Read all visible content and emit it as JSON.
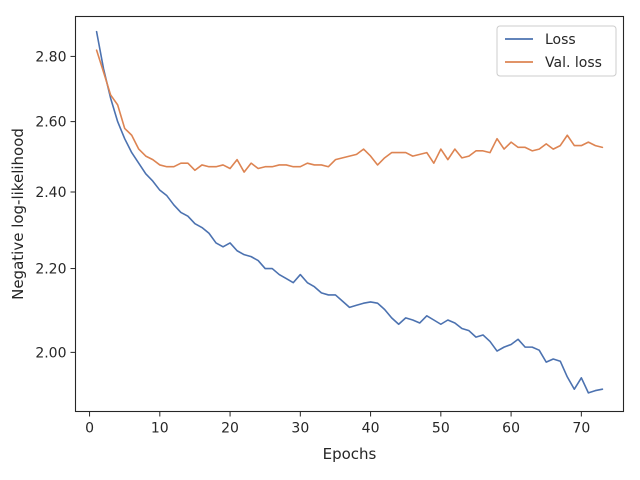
{
  "chart_data": {
    "type": "line",
    "title": "",
    "xlabel": "Epochs",
    "ylabel": "Negative log-likelihood",
    "y_scale": "log",
    "xlim": [
      -2,
      76
    ],
    "ylim": [
      1.87,
      2.93
    ],
    "x_ticks": [
      0,
      10,
      20,
      30,
      40,
      50,
      60,
      70
    ],
    "x_tick_labels": [
      "0",
      "10",
      "20",
      "30",
      "40",
      "50",
      "60",
      "70"
    ],
    "y_ticks": [
      2.0,
      2.2,
      2.4,
      2.6,
      2.8
    ],
    "y_tick_labels": [
      "2.00",
      "2.20",
      "2.40",
      "2.60",
      "2.80"
    ],
    "grid": false,
    "legend_position": "top-right",
    "x": [
      1,
      2,
      3,
      4,
      5,
      6,
      7,
      8,
      9,
      10,
      11,
      12,
      13,
      14,
      15,
      16,
      17,
      18,
      19,
      20,
      21,
      22,
      23,
      24,
      25,
      26,
      27,
      28,
      29,
      30,
      31,
      32,
      33,
      34,
      35,
      36,
      37,
      38,
      39,
      40,
      41,
      42,
      43,
      44,
      45,
      46,
      47,
      48,
      49,
      50,
      51,
      52,
      53,
      54,
      55,
      56,
      57,
      58,
      59,
      60,
      61,
      62,
      63,
      64,
      65,
      66,
      67,
      68,
      69,
      70,
      71,
      72,
      73
    ],
    "series": [
      {
        "name": "Loss",
        "color": "#4c72b0",
        "values": [
          2.88,
          2.76,
          2.67,
          2.6,
          2.55,
          2.51,
          2.48,
          2.45,
          2.43,
          2.405,
          2.39,
          2.365,
          2.345,
          2.335,
          2.315,
          2.305,
          2.29,
          2.265,
          2.255,
          2.265,
          2.245,
          2.235,
          2.23,
          2.22,
          2.2,
          2.2,
          2.185,
          2.175,
          2.165,
          2.185,
          2.165,
          2.155,
          2.14,
          2.135,
          2.135,
          2.12,
          2.105,
          2.11,
          2.115,
          2.118,
          2.115,
          2.1,
          2.08,
          2.065,
          2.08,
          2.075,
          2.068,
          2.085,
          2.075,
          2.065,
          2.075,
          2.068,
          2.055,
          2.05,
          2.035,
          2.04,
          2.025,
          2.003,
          2.012,
          2.018,
          2.03,
          2.012,
          2.012,
          2.005,
          1.978,
          1.985,
          1.98,
          1.945,
          1.918,
          1.943,
          1.91,
          1.915,
          1.918
        ]
      },
      {
        "name": "Val. loss",
        "color": "#dd8452",
        "values": [
          2.82,
          2.75,
          2.68,
          2.65,
          2.58,
          2.56,
          2.52,
          2.5,
          2.49,
          2.475,
          2.47,
          2.47,
          2.48,
          2.48,
          2.46,
          2.475,
          2.47,
          2.47,
          2.475,
          2.465,
          2.49,
          2.455,
          2.48,
          2.465,
          2.47,
          2.47,
          2.475,
          2.475,
          2.47,
          2.47,
          2.48,
          2.475,
          2.475,
          2.47,
          2.49,
          2.495,
          2.5,
          2.505,
          2.52,
          2.5,
          2.475,
          2.495,
          2.51,
          2.51,
          2.51,
          2.5,
          2.505,
          2.51,
          2.48,
          2.52,
          2.49,
          2.52,
          2.495,
          2.5,
          2.515,
          2.515,
          2.51,
          2.55,
          2.52,
          2.54,
          2.525,
          2.525,
          2.515,
          2.52,
          2.535,
          2.52,
          2.53,
          2.56,
          2.53,
          2.53,
          2.54,
          2.53,
          2.525
        ]
      }
    ]
  }
}
